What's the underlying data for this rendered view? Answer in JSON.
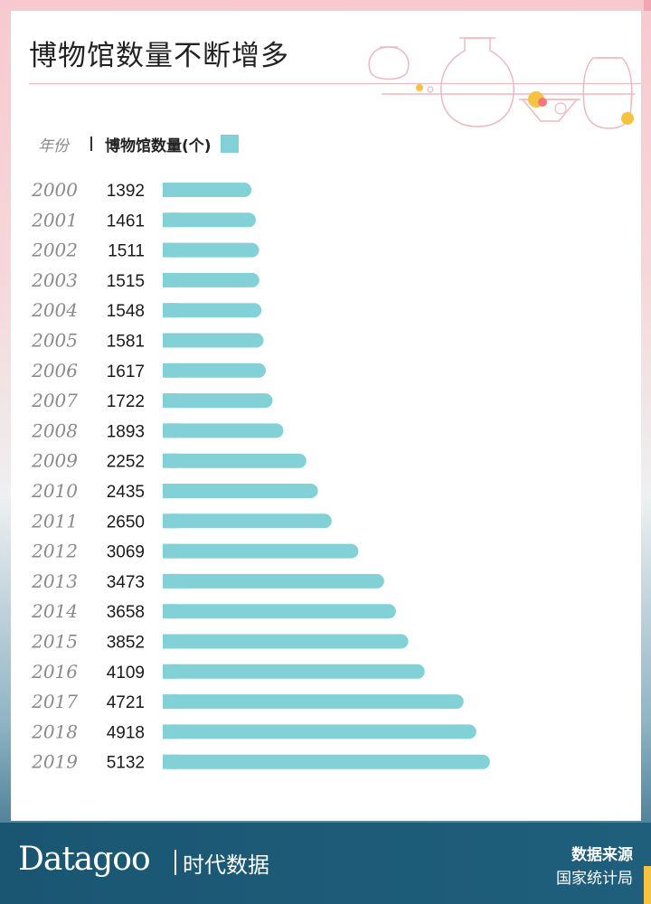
{
  "title": "博物馆数量不断增多",
  "legend": {
    "year_header": "年份",
    "value_header": "博物馆数量(个)",
    "color": "#82d1d6"
  },
  "chart_data": {
    "type": "bar",
    "orientation": "horizontal",
    "categories": [
      "2000",
      "2001",
      "2002",
      "2003",
      "2004",
      "2005",
      "2006",
      "2007",
      "2008",
      "2009",
      "2010",
      "2011",
      "2012",
      "2013",
      "2014",
      "2015",
      "2016",
      "2017",
      "2018",
      "2019"
    ],
    "values": [
      1392,
      1461,
      1511,
      1515,
      1548,
      1581,
      1617,
      1722,
      1893,
      2252,
      2435,
      2650,
      3069,
      3473,
      3658,
      3852,
      4109,
      4721,
      4918,
      5132
    ],
    "title": "博物馆数量不断增多",
    "xlabel": "",
    "ylabel": "",
    "grid": false,
    "legend_position": "top-left"
  },
  "footer": {
    "brand": "Datagoo",
    "brand_cn": "时代数据",
    "source_label": "数据来源",
    "source_name": "国家统计局"
  },
  "colors": {
    "bar": "#82d1d6",
    "footer_bg": "#1f5b78",
    "accent_pink": "#f0b7c0",
    "accent_yellow": "#f5c242"
  }
}
